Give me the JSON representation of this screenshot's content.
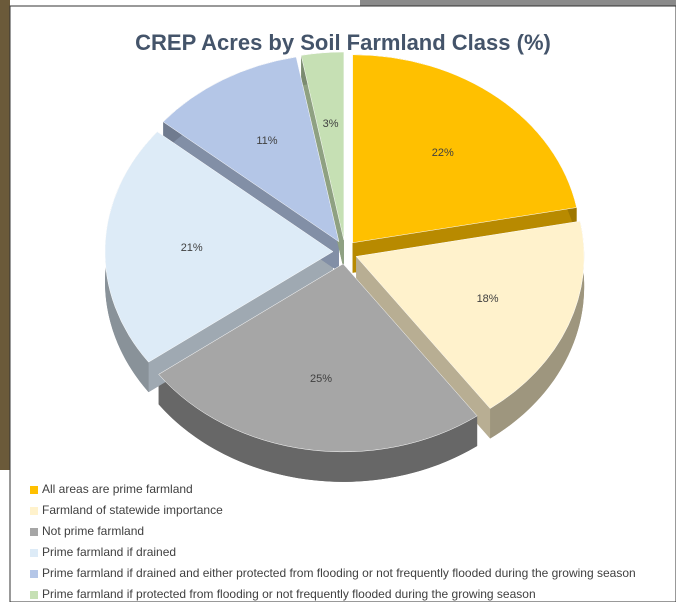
{
  "chart_data": {
    "type": "pie",
    "title": "CREP Acres by Soil Farmland Class (%)",
    "categories": [
      "All areas are prime farmland",
      "Farmland of statewide importance",
      "Not prime farmland",
      "Prime farmland if drained",
      "Prime farmland if drained and either protected from flooding or not frequently flooded during the growing season",
      "Prime farmland if protected from flooding or not frequently flooded during the growing season"
    ],
    "values": [
      22,
      18,
      25,
      21,
      11,
      3
    ],
    "value_labels": [
      "22%",
      "18%",
      "25%",
      "21%",
      "11%",
      "3%"
    ],
    "colors": [
      "#FFC000",
      "#FFF2CC",
      "#A6A6A6",
      "#DDEBF7",
      "#B4C6E7",
      "#C6E0B4"
    ],
    "legend": "bottom"
  }
}
